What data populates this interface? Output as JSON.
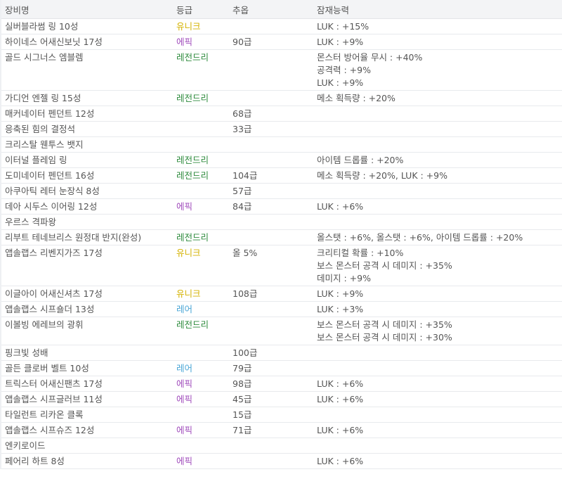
{
  "headers": {
    "name": "장비명",
    "grade": "등급",
    "starforce": "추옵",
    "potential": "잠재능력"
  },
  "grade_colors": {
    "유니크": "#d4b200",
    "에픽": "#a24fbd",
    "레전드리": "#2e8b3d",
    "레어": "#4aa6d6"
  },
  "rows": [
    {
      "name": "실버블라썸 링 10성",
      "grade": "유니크",
      "starforce": "",
      "potential": [
        "LUK : +15%"
      ]
    },
    {
      "name": "하이네스 어새신보닛 17성",
      "grade": "에픽",
      "starforce": "90급",
      "potential": [
        "LUK : +9%"
      ]
    },
    {
      "name": "골드 시그너스 엠블렘",
      "grade": "레전드리",
      "starforce": "",
      "potential": [
        "몬스터 방어율 무시 : +40%",
        "공격력 : +9%",
        "LUK : +9%"
      ]
    },
    {
      "name": "가디언 엔젤 링 15성",
      "grade": "레전드리",
      "starforce": "",
      "potential": [
        "메소 획득량 : +20%"
      ]
    },
    {
      "name": "매커네이터 펜던트 12성",
      "grade": "",
      "starforce": "68급",
      "potential": []
    },
    {
      "name": "응축된 힘의 결정석",
      "grade": "",
      "starforce": "33급",
      "potential": []
    },
    {
      "name": "크리스탈 웬투스 뱃지",
      "grade": "",
      "starforce": "",
      "potential": []
    },
    {
      "name": "이터널 플레임 링",
      "grade": "레전드리",
      "starforce": "",
      "potential": [
        "아이템 드롭률 : +20%"
      ]
    },
    {
      "name": "도미네이터 펜던트 16성",
      "grade": "레전드리",
      "starforce": "104급",
      "potential": [
        "메소 획득량 : +20%, LUK : +9%"
      ]
    },
    {
      "name": "아쿠아틱 레터 눈장식 8성",
      "grade": "",
      "starforce": "57급",
      "potential": []
    },
    {
      "name": "데아 시두스 이어링 12성",
      "grade": "에픽",
      "starforce": "84급",
      "potential": [
        "LUK : +6%"
      ]
    },
    {
      "name": "우르스 격파왕",
      "grade": "",
      "starforce": "",
      "potential": []
    },
    {
      "name": "리부트 테네브리스 원정대 반지(완성)",
      "grade": "레전드리",
      "starforce": "",
      "potential": [
        "올스탯 : +6%, 올스탯 : +6%, 아이템 드롭률 : +20%"
      ]
    },
    {
      "name": "앱솔랩스 리벤지가즈 17성",
      "grade": "유니크",
      "starforce": "올 5%",
      "potential": [
        "크리티컬 확률 : +10%",
        "보스 몬스터 공격 시 데미지 : +35%",
        "데미지 : +9%"
      ]
    },
    {
      "name": "이글아이 어새신셔츠 17성",
      "grade": "유니크",
      "starforce": "108급",
      "potential": [
        "LUK : +9%"
      ]
    },
    {
      "name": "앱솔랩스 시프숄더 13성",
      "grade": "레어",
      "starforce": "",
      "potential": [
        "LUK : +3%"
      ]
    },
    {
      "name": "이볼빙 에레브의 광휘",
      "grade": "레전드리",
      "starforce": "",
      "potential": [
        "보스 몬스터 공격 시 데미지 : +35%",
        "보스 몬스터 공격 시 데미지 : +30%"
      ]
    },
    {
      "name": "핑크빛 성배",
      "grade": "",
      "starforce": "100급",
      "potential": []
    },
    {
      "name": "골든 클로버 벨트 10성",
      "grade": "레어",
      "starforce": "79급",
      "potential": []
    },
    {
      "name": "트릭스터 어새신팬츠 17성",
      "grade": "에픽",
      "starforce": "98급",
      "potential": [
        "LUK : +6%"
      ]
    },
    {
      "name": "앱솔랩스 시프글러브 11성",
      "grade": "에픽",
      "starforce": "45급",
      "potential": [
        "LUK : +6%"
      ]
    },
    {
      "name": "타일런트 리카온 클록",
      "grade": "",
      "starforce": "15급",
      "potential": []
    },
    {
      "name": "앱솔랩스 시프슈즈 12성",
      "grade": "에픽",
      "starforce": "71급",
      "potential": [
        "LUK : +6%"
      ]
    },
    {
      "name": "엔키로이드",
      "grade": "",
      "starforce": "",
      "potential": []
    },
    {
      "name": "페어리 하트 8성",
      "grade": "에픽",
      "starforce": "",
      "potential": [
        "LUK : +6%"
      ]
    }
  ]
}
